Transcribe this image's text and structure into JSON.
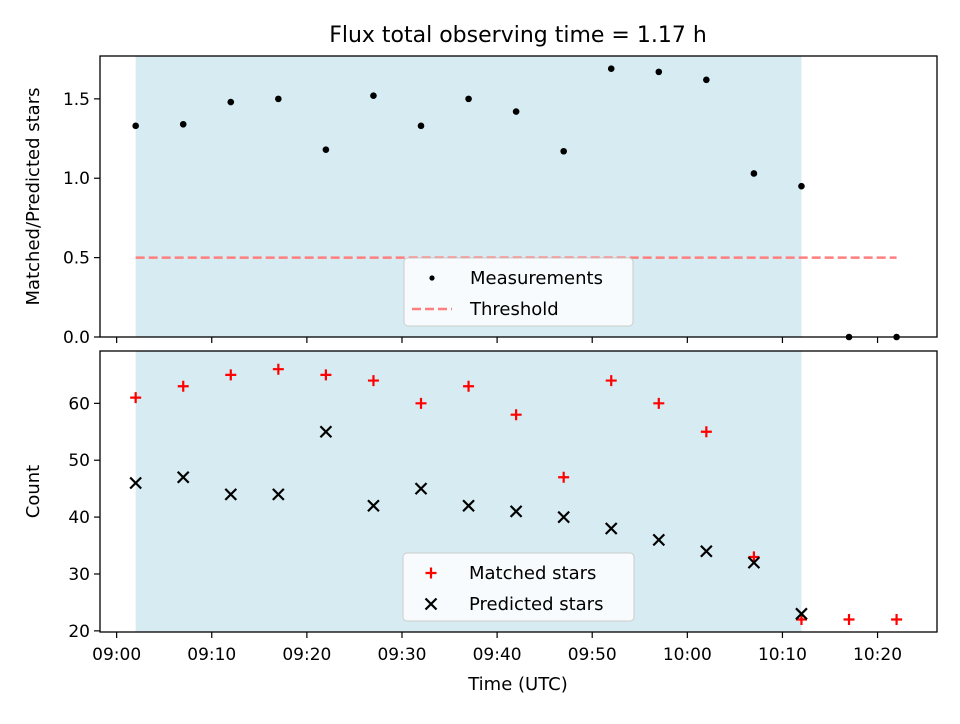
{
  "chart_data": {
    "title": "Flux total observing time = 1.17 h",
    "x_ticks": [
      "09:00",
      "09:10",
      "09:20",
      "09:30",
      "09:40",
      "09:50",
      "10:00",
      "10:10",
      "10:20"
    ],
    "xlabel": "Time (UTC)",
    "shaded_interval": [
      "09:02",
      "10:12"
    ],
    "shade_color": "#add8e6",
    "panels": [
      {
        "type": "scatter",
        "ylabel": "Matched/Predicted stars",
        "ylim": [
          0,
          1.77
        ],
        "y_ticks": [
          0.0,
          0.5,
          1.0,
          1.5
        ],
        "y_tick_labels": [
          "0.0",
          "0.5",
          "1.0",
          "1.5"
        ],
        "legend_position": "lower center",
        "series": [
          {
            "name": "Measurements",
            "marker": "dot",
            "color": "#000000",
            "x": [
              "09:02",
              "09:07",
              "09:12",
              "09:17",
              "09:22",
              "09:27",
              "09:32",
              "09:37",
              "09:42",
              "09:47",
              "09:52",
              "09:57",
              "10:02",
              "10:07",
              "10:12",
              "10:17",
              "10:22"
            ],
            "y": [
              1.33,
              1.34,
              1.48,
              1.5,
              1.18,
              1.52,
              1.33,
              1.5,
              1.42,
              1.17,
              1.69,
              1.67,
              1.62,
              1.03,
              0.95,
              0.0,
              0.0
            ]
          },
          {
            "name": "Threshold",
            "style": "dashed-line",
            "color": "#ff7f7f",
            "x": [
              "09:02",
              "10:22"
            ],
            "y": [
              0.5,
              0.5
            ]
          }
        ]
      },
      {
        "type": "scatter",
        "ylabel": "Count",
        "ylim": [
          19.8,
          69.2
        ],
        "y_ticks": [
          20,
          30,
          40,
          50,
          60
        ],
        "y_tick_labels": [
          "20",
          "30",
          "40",
          "50",
          "60"
        ],
        "legend_position": "lower center",
        "series": [
          {
            "name": "Matched stars",
            "marker": "plus",
            "color": "#ff0000",
            "x": [
              "09:02",
              "09:07",
              "09:12",
              "09:17",
              "09:22",
              "09:27",
              "09:32",
              "09:37",
              "09:42",
              "09:47",
              "09:52",
              "09:57",
              "10:02",
              "10:07",
              "10:12",
              "10:17",
              "10:22"
            ],
            "y": [
              61,
              63,
              65,
              66,
              65,
              64,
              60,
              63,
              58,
              47,
              64,
              60,
              55,
              33,
              22,
              22,
              22
            ]
          },
          {
            "name": "Predicted stars",
            "marker": "cross",
            "color": "#000000",
            "x": [
              "09:02",
              "09:07",
              "09:12",
              "09:17",
              "09:22",
              "09:27",
              "09:32",
              "09:37",
              "09:42",
              "09:47",
              "09:52",
              "09:57",
              "10:02",
              "10:07",
              "10:12"
            ],
            "y": [
              46,
              47,
              44,
              44,
              55,
              42,
              45,
              42,
              41,
              40,
              38,
              36,
              34,
              32,
              23
            ]
          }
        ]
      }
    ]
  }
}
